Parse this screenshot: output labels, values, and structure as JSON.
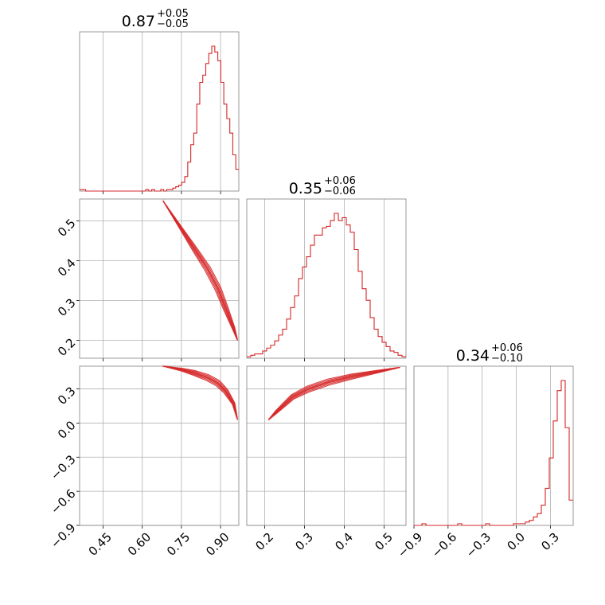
{
  "chart_data": {
    "type": "corner",
    "color": "#d62728",
    "grid": true,
    "parameters": [
      {
        "title": {
          "value": "0.87",
          "plus": "+0.05",
          "minus": "−0.05"
        },
        "range": [
          0.36,
          0.97
        ],
        "ticks": [
          0.45,
          0.6,
          0.75,
          0.9
        ],
        "tick_labels": [
          "0.45",
          "0.60",
          "0.75",
          "0.90"
        ]
      },
      {
        "title": {
          "value": "0.35",
          "plus": "+0.06",
          "minus": "−0.06"
        },
        "range": [
          0.155,
          0.555
        ],
        "ticks": [
          0.2,
          0.3,
          0.4,
          0.5
        ],
        "tick_labels": [
          "0.2",
          "0.3",
          "0.4",
          "0.5"
        ]
      },
      {
        "title": {
          "value": "0.34",
          "plus": "+0.06",
          "minus": "−0.10"
        },
        "range": [
          -0.9,
          0.5
        ],
        "ticks": [
          -0.9,
          -0.6,
          -0.3,
          0.0,
          0.3
        ],
        "tick_labels": [
          "−0.9",
          "−0.6",
          "−0.3",
          "0.0",
          "0.3"
        ]
      }
    ],
    "histograms": [
      {
        "param": 0,
        "bin_edges_range": [
          0.36,
          0.97
        ],
        "counts": [
          1,
          1,
          0,
          0,
          0,
          0,
          0,
          0,
          0,
          0,
          0,
          0,
          0,
          0,
          0,
          0,
          0,
          0,
          0,
          0,
          0,
          0,
          1,
          0,
          1,
          0,
          0,
          1,
          0,
          1,
          1,
          2,
          3,
          4,
          6,
          10,
          20,
          32,
          40,
          60,
          75,
          80,
          88,
          95,
          100,
          96,
          90,
          75,
          60,
          50,
          40,
          25,
          15
        ]
      },
      {
        "param": 1,
        "bin_edges_range": [
          0.155,
          0.555
        ],
        "counts": [
          1,
          2,
          3,
          3,
          5,
          7,
          9,
          12,
          16,
          20,
          27,
          35,
          43,
          55,
          63,
          70,
          78,
          85,
          85,
          90,
          91,
          95,
          100,
          95,
          97,
          92,
          87,
          75,
          60,
          48,
          40,
          28,
          20,
          15,
          11,
          8,
          5,
          4,
          2,
          1
        ]
      },
      {
        "param": 2,
        "bin_edges_range": [
          -0.9,
          0.5
        ],
        "counts": [
          0,
          0,
          1,
          0,
          0,
          0,
          0,
          0,
          0,
          0,
          0,
          1,
          0,
          0,
          0,
          0,
          0,
          0,
          1,
          0,
          0,
          0,
          0,
          0,
          0,
          1,
          1,
          1,
          2,
          3,
          5,
          7,
          12,
          22,
          40,
          62,
          80,
          86,
          58,
          15
        ]
      }
    ],
    "contours": [
      {
        "x_param": 0,
        "y_param": 1,
        "points": [
          [
            0.68,
            0.55
          ],
          [
            0.75,
            0.48
          ],
          [
            0.8,
            0.43
          ],
          [
            0.85,
            0.38
          ],
          [
            0.89,
            0.33
          ],
          [
            0.92,
            0.28
          ],
          [
            0.95,
            0.23
          ],
          [
            0.965,
            0.2
          ]
        ]
      },
      {
        "x_param": 0,
        "y_param": 2,
        "points": [
          [
            0.68,
            0.5
          ],
          [
            0.75,
            0.47
          ],
          [
            0.8,
            0.44
          ],
          [
            0.85,
            0.4
          ],
          [
            0.89,
            0.35
          ],
          [
            0.92,
            0.28
          ],
          [
            0.95,
            0.17
          ],
          [
            0.965,
            0.03
          ]
        ]
      },
      {
        "x_param": 1,
        "y_param": 2,
        "points": [
          [
            0.21,
            0.03
          ],
          [
            0.23,
            0.1
          ],
          [
            0.27,
            0.23
          ],
          [
            0.31,
            0.3
          ],
          [
            0.36,
            0.36
          ],
          [
            0.42,
            0.41
          ],
          [
            0.48,
            0.45
          ],
          [
            0.54,
            0.49
          ]
        ]
      }
    ]
  }
}
